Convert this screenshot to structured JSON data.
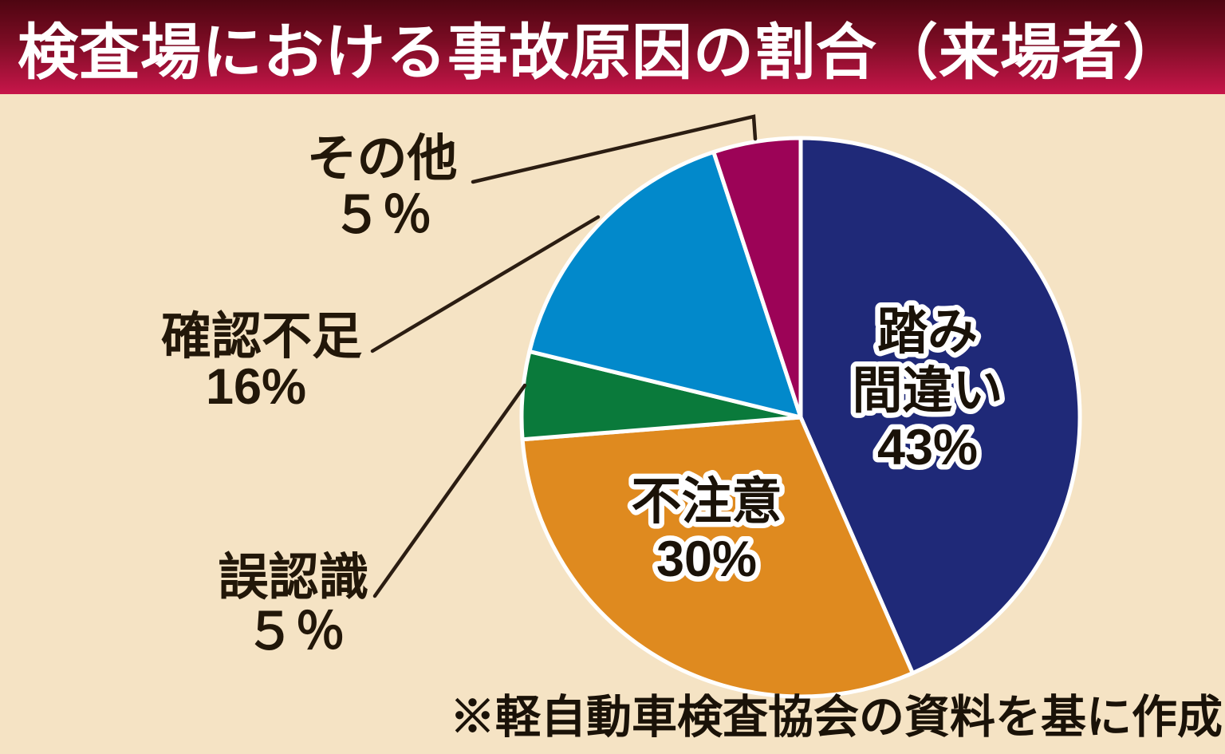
{
  "title": "検査場における事故原因の割合（来場者）",
  "source_note": "※軽自動車検査協会の資料を基に作成",
  "colors": {
    "background": "#F5E3C4",
    "header_gradient_top": "#4E0511",
    "header_gradient_bottom": "#C7164A",
    "title_text": "#FFFFFF",
    "label_text": "#1A1208",
    "leader_line": "#2B1D12",
    "slice_outline": "#FFFFFF"
  },
  "chart_data": {
    "type": "pie",
    "title": "検査場における事故原因の割合（来場者）",
    "direction": "clockwise",
    "start_angle": "12-oclock",
    "legend_position": "none",
    "slices": [
      {
        "label": "踏み間違い",
        "value": 43,
        "display": "43%",
        "color": "#1F2978",
        "label_placement": "inside",
        "label_lines": [
          "踏み",
          "間違い",
          "43%"
        ]
      },
      {
        "label": "不注意",
        "value": 30,
        "display": "30%",
        "color": "#DF8A1F",
        "label_placement": "inside",
        "label_lines": [
          "不注意",
          "30%"
        ]
      },
      {
        "label": "誤認識",
        "value": 5,
        "display": "５％",
        "color": "#0A7A3B",
        "label_placement": "outside",
        "label_lines": [
          "誤認識",
          "５％"
        ]
      },
      {
        "label": "確認不足",
        "value": 16,
        "display": "16%",
        "color": "#0289CB",
        "label_placement": "outside",
        "label_lines": [
          "確認不足",
          "16%"
        ]
      },
      {
        "label": "その他",
        "value": 5,
        "display": "５％",
        "color": "#9C0357",
        "label_placement": "outside",
        "label_lines": [
          "その他",
          "５％"
        ]
      }
    ]
  }
}
